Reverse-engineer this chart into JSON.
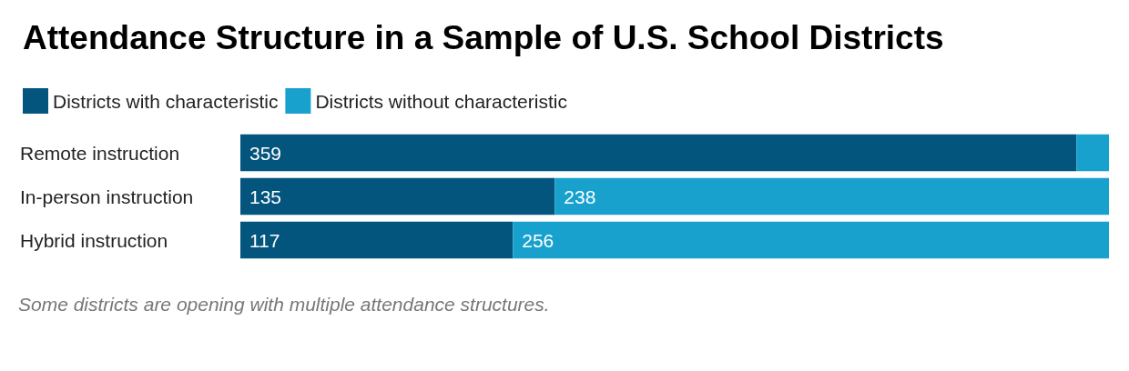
{
  "chart_data": {
    "type": "bar",
    "orientation": "horizontal",
    "stacked": true,
    "title": "Attendance Structure in a Sample of U.S. School Districts",
    "categories": [
      "Remote instruction",
      "In-person instruction",
      "Hybrid instruction"
    ],
    "series": [
      {
        "name": "Districts with characteristic",
        "color": "#03557d",
        "values": [
          359,
          135,
          117
        ],
        "value_labels": [
          "359",
          "135",
          "117"
        ]
      },
      {
        "name": "Districts without characteristic",
        "color": "#18a1cd",
        "values": [
          14,
          238,
          256
        ],
        "value_labels": [
          null,
          "238",
          "256"
        ]
      }
    ],
    "legend": "top left",
    "annotations": [
      "Some districts are opening with multiple attendance structures."
    ]
  }
}
